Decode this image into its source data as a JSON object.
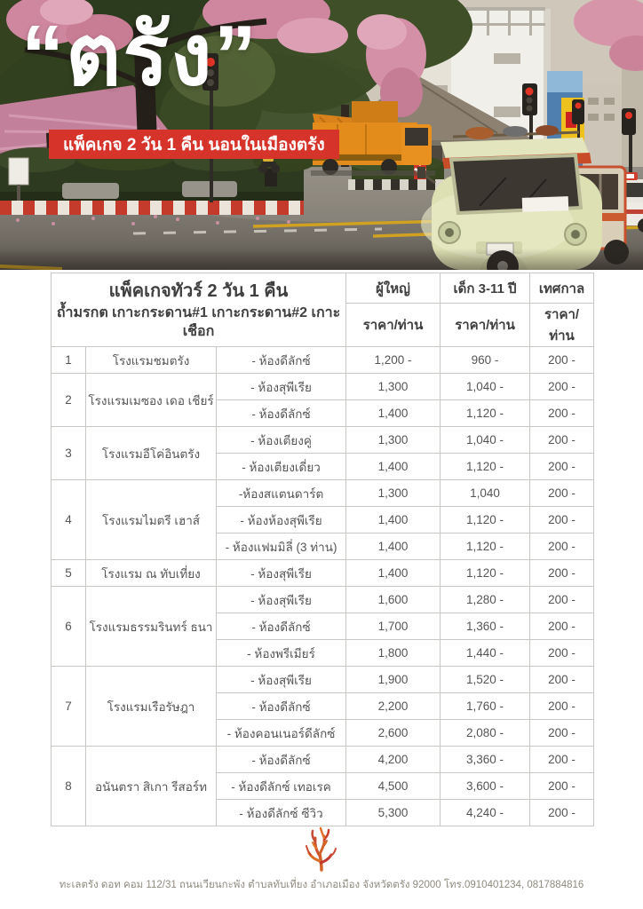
{
  "hero": {
    "title": "“ตรัง”",
    "banner": "แพ็คเกจ 2 วัน 1 คืน นอนในเมืองตรัง"
  },
  "table": {
    "header": {
      "title": "แพ็คเกจทัวร์ 2 วัน 1 คืน",
      "subtitle": "ถ้ำมรกต เกาะกระดาน#1 เกาะกระดาน#2 เกาะเชือก"
    },
    "columns": [
      {
        "title": "ผู้ใหญ่",
        "subtitle": "ราคา/ท่าน"
      },
      {
        "title": "เด็ก 3-11 ปี",
        "subtitle": "ราคา/ท่าน"
      },
      {
        "title": "เทศกาล",
        "subtitle": "ราคา/ท่าน"
      }
    ],
    "groups": [
      {
        "no": "1",
        "hotel": "โรงแรมชมตรัง",
        "rooms": [
          {
            "room": "- ห้องดีลักซ์",
            "adult": "1,200 -",
            "child": "960 -",
            "festival": "200 -"
          }
        ]
      },
      {
        "no": "2",
        "hotel": "โรงแรมเมซอง เดอ เชียร์",
        "rooms": [
          {
            "room": "- ห้องสุพีเรีย",
            "adult": "1,300",
            "child": "1,040 -",
            "festival": "200 -"
          },
          {
            "room": "- ห้องดีลักซ์",
            "adult": "1,400",
            "child": "1,120 -",
            "festival": "200 -"
          }
        ]
      },
      {
        "no": "3",
        "hotel": "โรงแรมอีโค่อินตรัง",
        "rooms": [
          {
            "room": "- ห้องเตียงคู่",
            "adult": "1,300",
            "child": "1,040 -",
            "festival": "200 -"
          },
          {
            "room": "- ห้องเตียงเดี่ยว",
            "adult": "1,400",
            "child": "1,120 -",
            "festival": "200 -"
          }
        ]
      },
      {
        "no": "4",
        "hotel": "โรงแรมไมตรี เฮาส์",
        "rooms": [
          {
            "room": "-ห้องสแตนดาร์ต",
            "adult": "1,300",
            "child": "1,040",
            "festival": "200 -"
          },
          {
            "room": "- ห้องห้องสุพีเรีย",
            "adult": "1,400",
            "child": "1,120 -",
            "festival": "200 -"
          },
          {
            "room": "- ห้องแฟมมิลี่ (3 ท่าน)",
            "adult": "1,400",
            "child": "1,120 -",
            "festival": "200 -"
          }
        ]
      },
      {
        "no": "5",
        "hotel": "โรงแรม ณ ทับเที่ยง",
        "rooms": [
          {
            "room": "- ห้องสุพีเรีย",
            "adult": "1,400",
            "child": "1,120 -",
            "festival": "200 -"
          }
        ]
      },
      {
        "no": "6",
        "hotel": "โรงแรมธรรมรินทร์ ธนา",
        "rooms": [
          {
            "room": "- ห้องสุพีเรีย",
            "adult": "1,600",
            "child": "1,280 -",
            "festival": "200 -"
          },
          {
            "room": "- ห้องดีลักซ์",
            "adult": "1,700",
            "child": "1,360 -",
            "festival": "200 -"
          },
          {
            "room": "- ห้องพรีเมียร์",
            "adult": "1,800",
            "child": "1,440 -",
            "festival": "200 -"
          }
        ]
      },
      {
        "no": "7",
        "hotel": "โรงแรมเรือรัษฎา",
        "rooms": [
          {
            "room": "- ห้องสุพีเรีย",
            "adult": "1,900",
            "child": "1,520 -",
            "festival": "200 -"
          },
          {
            "room": "- ห้องดีลักซ์",
            "adult": "2,200",
            "child": "1,760 -",
            "festival": "200 -"
          },
          {
            "room": "- ห้องคอนเนอร์ดีลักซ์",
            "adult": "2,600",
            "child": "2,080 -",
            "festival": "200 -"
          }
        ]
      },
      {
        "no": "8",
        "hotel": "อนันตรา สิเกา รีสอร์ท",
        "rooms": [
          {
            "room": "- ห้องดีลักซ์",
            "adult": "4,200",
            "child": "3,360 -",
            "festival": "200 -"
          },
          {
            "room": "- ห้องดีลักซ์ เทอเรค",
            "adult": "4,500",
            "child": "3,600 -",
            "festival": "200 -"
          },
          {
            "room": "- ห้องดีลักซ์ ซีวิว",
            "adult": "5,300",
            "child": "4,240 -",
            "festival": "200 -"
          }
        ]
      }
    ]
  },
  "footer": {
    "logo_icon": "coral-icon",
    "address": "ทะเลตรัง ดอท คอม 112/31 ถนนเวียนกะพัง ตำบลทับเที่ยง อำเภอเมือง จังหวัดตรัง 92000 โทร.0910401234, 0817884816"
  },
  "colors": {
    "banner_red": "#d6342b",
    "table_border": "#c9c7c4",
    "body_text": "#555555",
    "coral_orange": "#d9722c",
    "coral_red": "#c23a2e"
  }
}
